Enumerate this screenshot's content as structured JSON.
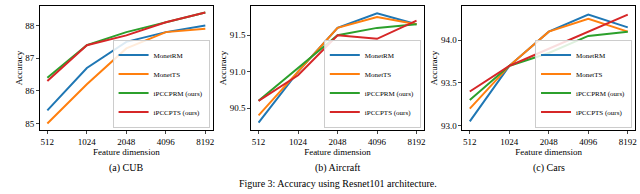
{
  "caption": "Figure 3: Accuracy using Resnet101 architecture.",
  "chart_data": [
    {
      "type": "line",
      "title": "(a) CUB",
      "x_label": "Feature dimension",
      "y_label": "Accuracy",
      "log": "x",
      "grid": false,
      "legend": "lower right",
      "x": [
        512,
        1024,
        2048,
        4096,
        8192
      ],
      "xlim": [
        450,
        9300
      ],
      "xticks": [
        512,
        1024,
        2048,
        4096,
        8192
      ],
      "ylim": [
        84.8,
        88.6
      ],
      "yticks": [
        85,
        86,
        87,
        88
      ],
      "series": [
        {
          "name": "MonetRM",
          "color": "#1f77b4",
          "values": [
            85.4,
            86.7,
            87.5,
            87.8,
            88.0
          ]
        },
        {
          "name": "MonetTS",
          "color": "#ff7f0e",
          "values": [
            85.0,
            86.2,
            87.3,
            87.8,
            87.9
          ]
        },
        {
          "name": "iPCCPRM (ours)",
          "color": "#2ca02c",
          "values": [
            86.4,
            87.4,
            87.8,
            88.1,
            88.4
          ]
        },
        {
          "name": "iPCCPTS (ours)",
          "color": "#d62728",
          "values": [
            86.3,
            87.4,
            87.7,
            88.1,
            88.4
          ]
        }
      ]
    },
    {
      "type": "line",
      "title": "(b) Aircraft",
      "x_label": "Feature dimension",
      "y_label": "Accuracy",
      "log": "x",
      "grid": false,
      "legend": "lower right",
      "x": [
        512,
        1024,
        2048,
        4096,
        8192
      ],
      "xlim": [
        450,
        9300
      ],
      "xticks": [
        512,
        1024,
        2048,
        4096,
        8192
      ],
      "ylim": [
        90.2,
        91.9
      ],
      "yticks": [
        90.5,
        {
          "value": 91,
          "label": "91.0"
        },
        91.5
      ],
      "series": [
        {
          "name": "MonetRM",
          "color": "#1f77b4",
          "values": [
            90.3,
            91.0,
            91.6,
            91.8,
            91.65
          ]
        },
        {
          "name": "MonetTS",
          "color": "#ff7f0e",
          "values": [
            90.4,
            91.0,
            91.6,
            91.75,
            91.65
          ]
        },
        {
          "name": "iPCCPRM (ours)",
          "color": "#2ca02c",
          "values": [
            90.6,
            91.05,
            91.5,
            91.6,
            91.65
          ]
        },
        {
          "name": "iPCCPTS (ours)",
          "color": "#d62728",
          "values": [
            90.6,
            90.95,
            91.5,
            91.45,
            91.7
          ]
        }
      ]
    },
    {
      "type": "line",
      "title": "(c) Cars",
      "x_label": "Feature dimension",
      "y_label": "Accuracy",
      "log": "x",
      "grid": false,
      "legend": "lower right",
      "x": [
        512,
        1024,
        2048,
        4096,
        8192
      ],
      "xlim": [
        450,
        9300
      ],
      "xticks": [
        512,
        1024,
        2048,
        4096,
        8192
      ],
      "ylim": [
        92.95,
        94.4
      ],
      "yticks": [
        {
          "value": 93,
          "label": "93.0"
        },
        93.5,
        {
          "value": 94,
          "label": "94.0"
        }
      ],
      "series": [
        {
          "name": "MonetRM",
          "color": "#1f77b4",
          "values": [
            93.05,
            93.7,
            94.1,
            94.3,
            94.15
          ]
        },
        {
          "name": "MonetTS",
          "color": "#ff7f0e",
          "values": [
            93.2,
            93.7,
            94.1,
            94.25,
            94.1
          ]
        },
        {
          "name": "iPCCPRM (ours)",
          "color": "#2ca02c",
          "values": [
            93.3,
            93.7,
            93.85,
            94.05,
            94.1
          ]
        },
        {
          "name": "iPCCPTS (ours)",
          "color": "#d62728",
          "values": [
            93.4,
            93.7,
            93.9,
            94.1,
            94.3
          ]
        }
      ]
    }
  ]
}
